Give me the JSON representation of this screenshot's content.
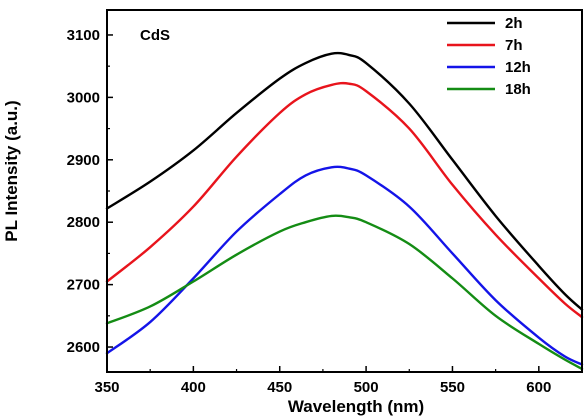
{
  "chart_data": {
    "type": "line",
    "title": "",
    "annotation": "CdS",
    "xlabel": "Wavelength (nm)",
    "ylabel": "PL Intensity (a.u.)",
    "xlim": [
      350,
      625
    ],
    "ylim": [
      2560,
      3140
    ],
    "xticks": [
      350,
      400,
      450,
      500,
      550,
      600
    ],
    "yticks": [
      2600,
      2700,
      2800,
      2900,
      3000,
      3100
    ],
    "grid": false,
    "legend_position": "top-right",
    "series": [
      {
        "name": "2h",
        "color": "#000000",
        "x": [
          350,
          375,
          400,
          425,
          450,
          465,
          480,
          490,
          500,
          525,
          550,
          575,
          600,
          615,
          625
        ],
        "y": [
          2822,
          2865,
          2915,
          2975,
          3030,
          3055,
          3070,
          3068,
          3055,
          2990,
          2900,
          2810,
          2730,
          2685,
          2660
        ]
      },
      {
        "name": "7h",
        "color": "#e8141c",
        "x": [
          350,
          375,
          400,
          425,
          450,
          465,
          480,
          490,
          500,
          525,
          550,
          575,
          600,
          615,
          625
        ],
        "y": [
          2705,
          2760,
          2825,
          2905,
          2975,
          3005,
          3020,
          3022,
          3010,
          2950,
          2860,
          2780,
          2710,
          2670,
          2648
        ]
      },
      {
        "name": "12h",
        "color": "#1414e8",
        "x": [
          350,
          375,
          400,
          425,
          450,
          465,
          480,
          490,
          500,
          525,
          550,
          575,
          600,
          615,
          625
        ],
        "y": [
          2590,
          2640,
          2710,
          2785,
          2845,
          2875,
          2888,
          2886,
          2875,
          2825,
          2750,
          2675,
          2615,
          2585,
          2572
        ]
      },
      {
        "name": "18h",
        "color": "#148c14",
        "x": [
          350,
          375,
          400,
          425,
          450,
          465,
          480,
          490,
          500,
          525,
          550,
          575,
          600,
          615,
          625
        ],
        "y": [
          2638,
          2665,
          2705,
          2748,
          2785,
          2800,
          2810,
          2808,
          2800,
          2765,
          2710,
          2650,
          2605,
          2580,
          2565
        ]
      }
    ]
  }
}
